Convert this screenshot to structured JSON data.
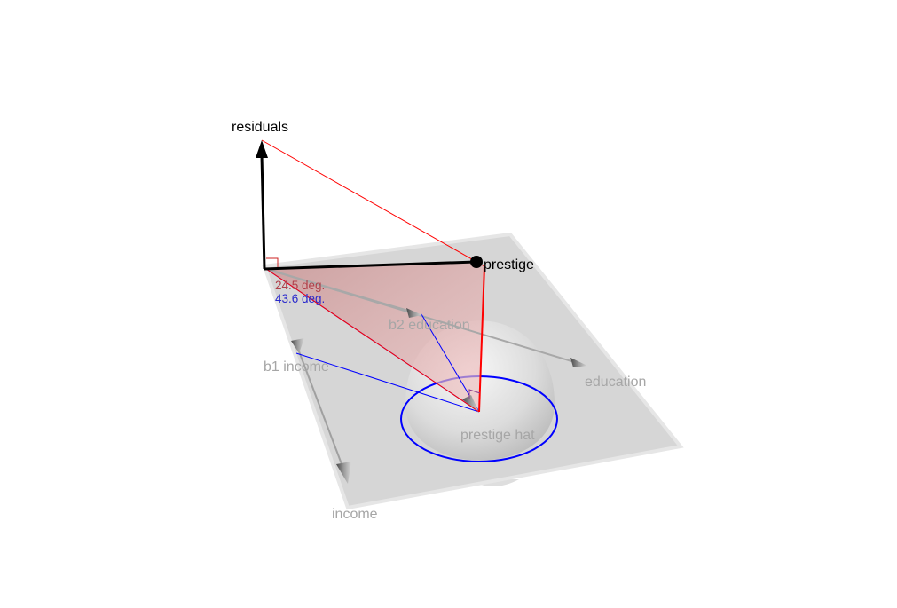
{
  "labels": {
    "residuals": "residuals",
    "prestige": "prestige",
    "education": "education",
    "income": "income",
    "b1_income": "b1 income",
    "b2_education": "b2 education",
    "prestige_hat": "prestige hat",
    "angle_red": "24.5 deg.",
    "angle_blue": "43.6 deg."
  },
  "colors": {
    "background": "#ffffff",
    "plane": "#d6d6d6",
    "plane_edge": "#e4e4e4",
    "axis_label": "#a6a6a6",
    "black": "#000000",
    "red": "#ff0000",
    "blue": "#0000ff",
    "angle_red_text": "#b0404a",
    "angle_blue_text": "#2a2acc",
    "red_fill": "#e79a9a",
    "sphere": "#e8e8e8"
  }
}
